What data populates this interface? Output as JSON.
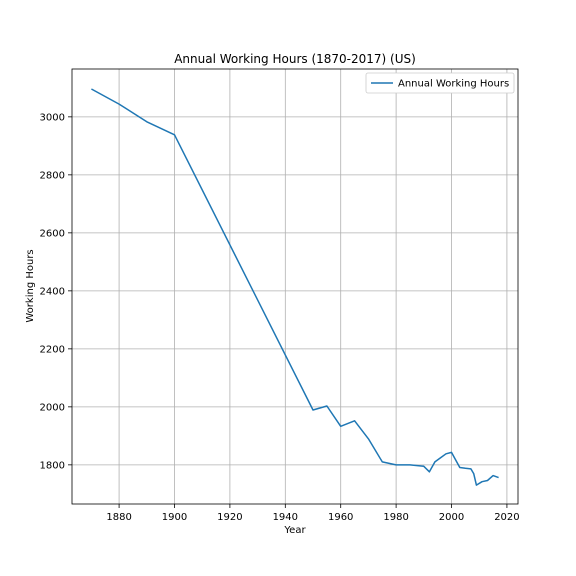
{
  "chart_data": {
    "type": "line",
    "title": "Annual Working Hours (1870-2017) (US)",
    "xlabel": "Year",
    "ylabel": "Working Hours",
    "xlim": [
      1863,
      2024
    ],
    "ylim": [
      1665,
      3165
    ],
    "xticks": [
      1880,
      1900,
      1920,
      1940,
      1960,
      1980,
      2000,
      2020
    ],
    "yticks": [
      1800,
      2000,
      2200,
      2400,
      2600,
      2800,
      3000
    ],
    "grid": true,
    "legend_position": "top-right",
    "series": [
      {
        "name": "Annual Working Hours",
        "color": "#1f77b4",
        "x": [
          1870,
          1880,
          1890,
          1900,
          1950,
          1955,
          1960,
          1965,
          1970,
          1975,
          1980,
          1985,
          1990,
          1992,
          1994,
          1996,
          1998,
          2000,
          2003,
          2005,
          2007,
          2008,
          2009,
          2011,
          2013,
          2015,
          2017
        ],
        "y": [
          3096,
          3044,
          2983,
          2938,
          1989,
          2003,
          1933,
          1952,
          1890,
          1810,
          1800,
          1800,
          1795,
          1776,
          1810,
          1824,
          1838,
          1843,
          1791,
          1788,
          1786,
          1770,
          1730,
          1742,
          1746,
          1763,
          1756
        ]
      }
    ]
  }
}
